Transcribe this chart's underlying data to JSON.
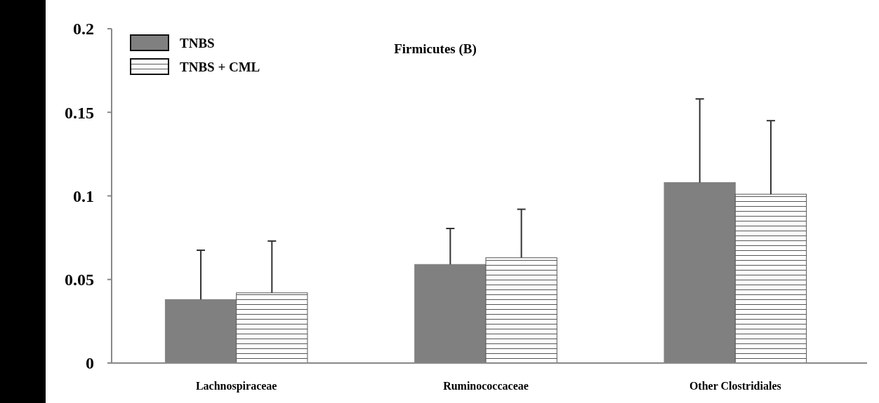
{
  "chart_data": {
    "type": "bar",
    "title": "Firmicutes (B)",
    "categories": [
      "Lachnospiraceae",
      "Ruminococcaceae",
      "Other Clostridiales"
    ],
    "series": [
      {
        "name": "TNBS",
        "color": "#808080",
        "values": [
          0.038,
          0.059,
          0.108
        ],
        "errors": [
          [
            0.038,
            0.0675
          ],
          [
            0.059,
            0.0805
          ],
          [
            0.108,
            0.158
          ]
        ]
      },
      {
        "name": "TNBS + CML",
        "color": "#555555",
        "values": [
          0.042,
          0.063,
          0.101
        ],
        "errors": [
          [
            0.042,
            0.073
          ],
          [
            0.063,
            0.092
          ],
          [
            0.101,
            0.145
          ]
        ]
      }
    ],
    "ylim": [
      0,
      0.2
    ],
    "yticks": [
      0,
      0.05,
      0.1,
      0.15,
      0.2
    ],
    "grid": false,
    "legend": "top left"
  }
}
